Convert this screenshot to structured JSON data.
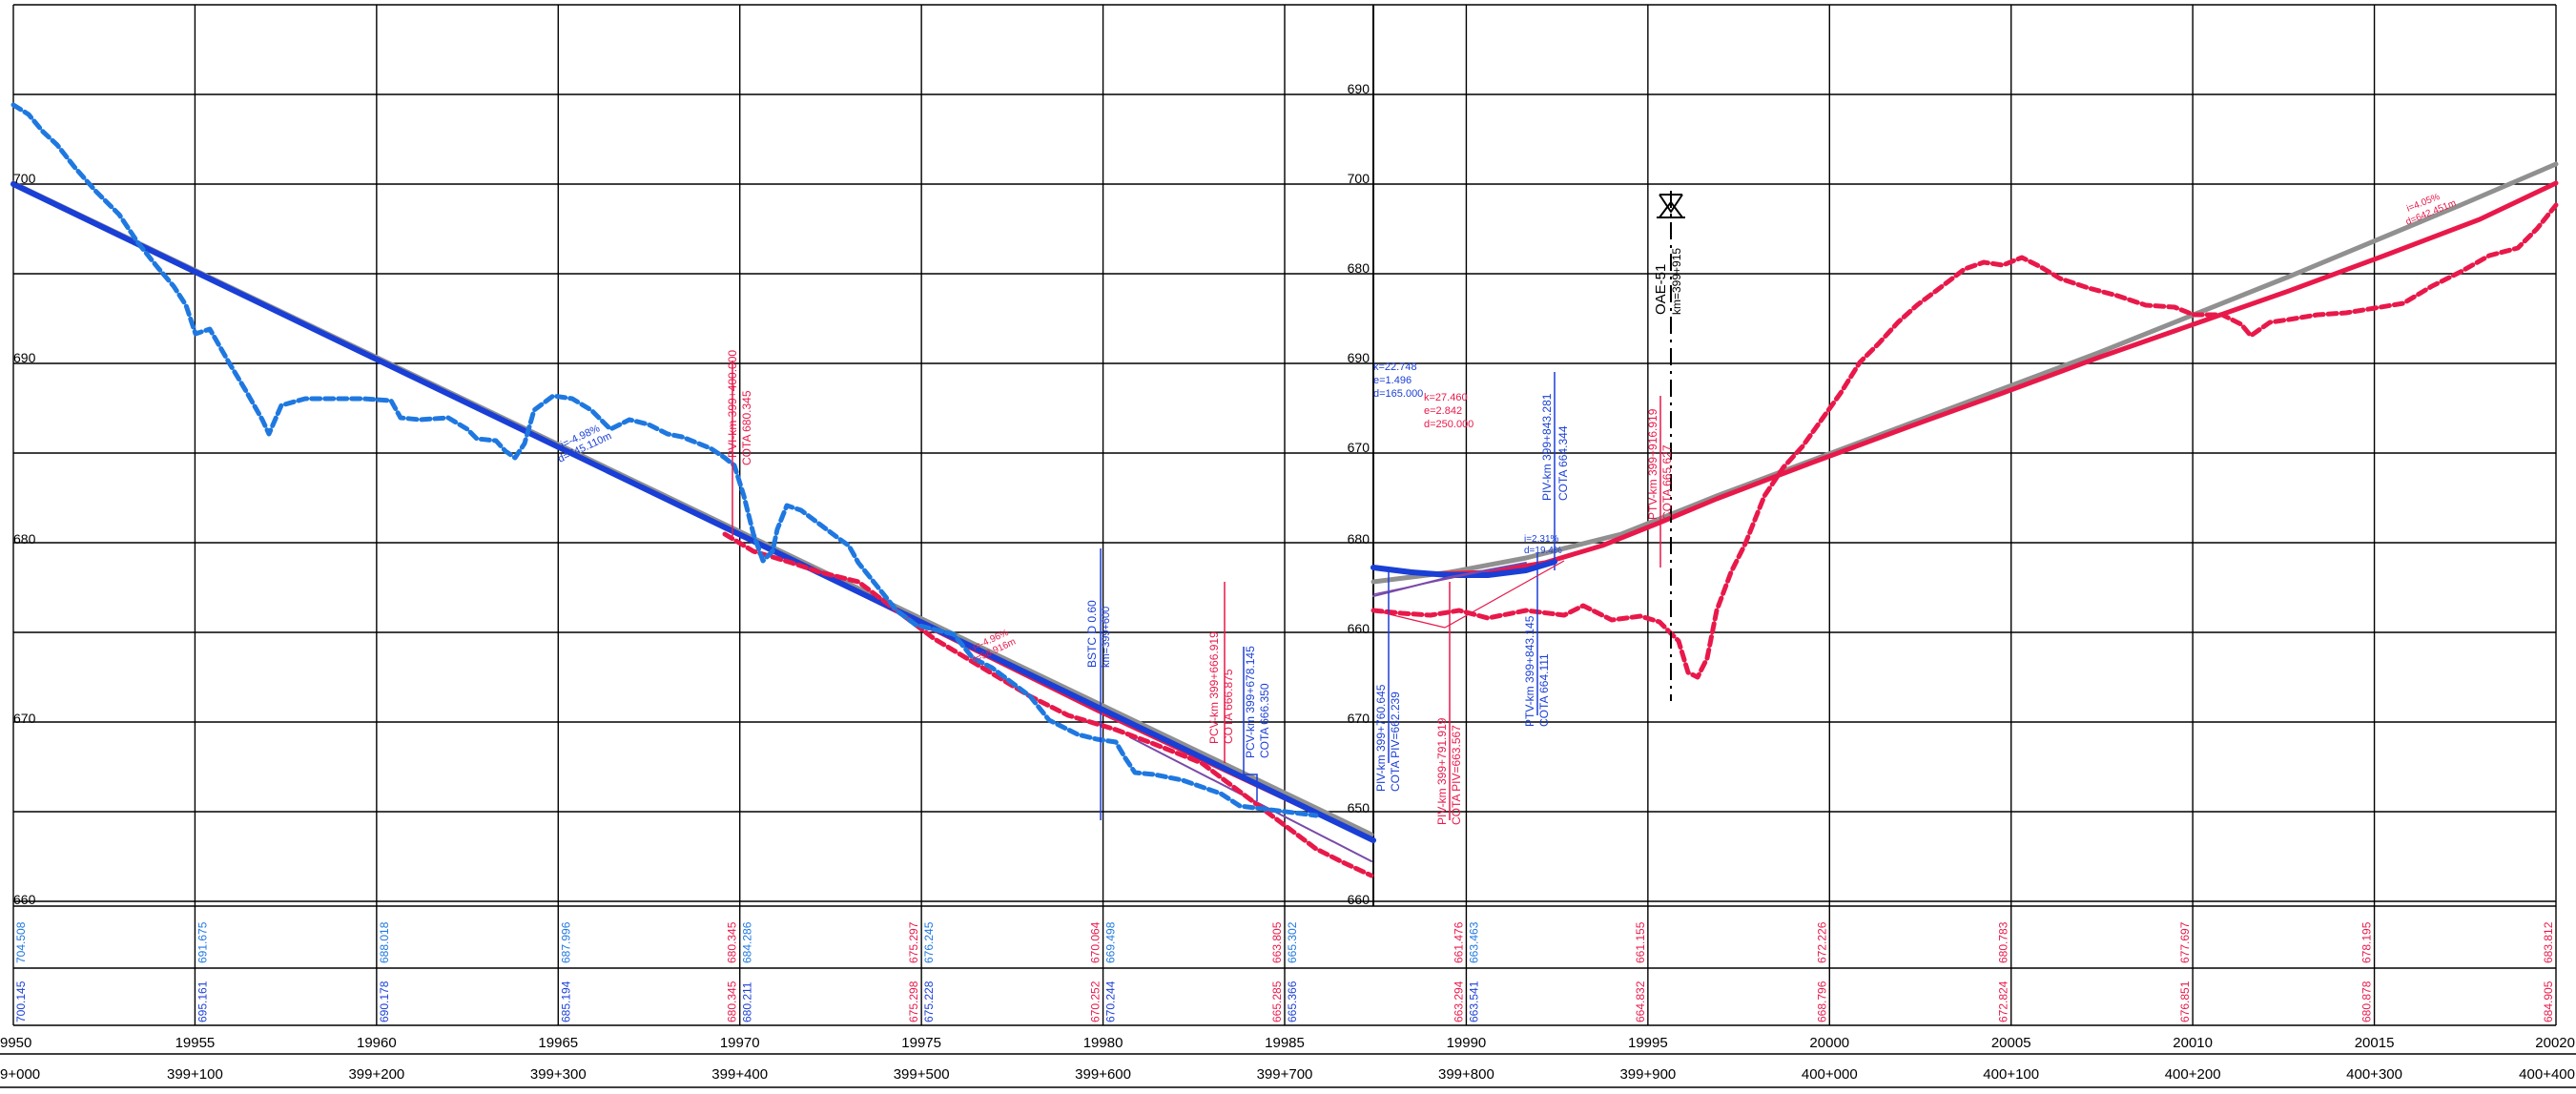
{
  "colors": {
    "grid": "#000000",
    "blue_terrain": "#1f78e0",
    "red_terrain": "#e8194a",
    "blue_design": "#1a3fd6",
    "red_design": "#e8194a",
    "grey_design": "#909090",
    "purple": "#7a4aa8",
    "black": "#000000"
  },
  "panel_left": {
    "elev_labels": [
      "700",
      "690",
      "680",
      "670",
      "660"
    ]
  },
  "panel_right": {
    "elev_labels": [
      "690",
      "700",
      "680",
      "690",
      "670",
      "680",
      "660",
      "670",
      "650",
      "660"
    ]
  },
  "bands": {
    "row1": [
      {
        "blue": "704.508"
      },
      {
        "blue": "691.675"
      },
      {
        "blue": "688.018"
      },
      {
        "blue": "687.996"
      },
      {
        "red": "680.345",
        "blue": "684.286"
      },
      {
        "red": "675.297",
        "blue": "676.245"
      },
      {
        "red": "670.064",
        "blue": "669.498"
      },
      {
        "red": "663.805",
        "blue": "665.302"
      },
      {
        "red": "661.476",
        "blue": "663.463"
      },
      {
        "red": "661.155"
      },
      {
        "red": "672.226"
      },
      {
        "red": "680.783"
      },
      {
        "red": "677.697"
      },
      {
        "red": "678.195"
      },
      {
        "red": "683.812"
      }
    ],
    "row2": [
      {
        "blue": "700.145"
      },
      {
        "blue": "695.161"
      },
      {
        "blue": "690.178"
      },
      {
        "blue": "685.194"
      },
      {
        "red": "680.345",
        "blue": "680.211"
      },
      {
        "red": "675.298",
        "blue": "675.228"
      },
      {
        "red": "670.252",
        "blue": "670.244"
      },
      {
        "red": "665.285",
        "blue": "665.366"
      },
      {
        "red": "663.294",
        "blue": "663.541"
      },
      {
        "red": "664.832"
      },
      {
        "red": "668.796"
      },
      {
        "red": "672.824"
      },
      {
        "red": "676.851"
      },
      {
        "red": "680.878"
      },
      {
        "red": "684.905"
      }
    ],
    "row3": [
      "9950",
      "19955",
      "19960",
      "19965",
      "19970",
      "19975",
      "19980",
      "19985",
      "19990",
      "19995",
      "20000",
      "20005",
      "20010",
      "20015",
      "20020"
    ],
    "row4": [
      "9+000",
      "399+100",
      "399+200",
      "399+300",
      "399+400",
      "399+500",
      "399+600",
      "399+700",
      "399+800",
      "399+900",
      "400+000",
      "400+100",
      "400+200",
      "400+300",
      "400+400"
    ]
  },
  "annotations": {
    "pvi1_km": "PVI-km 399+400.000",
    "pvi1_cota": "COTA 680.345",
    "grade1_i": "i=-4.98%",
    "grade1_d": "d=745.110m",
    "grade2_i": "i=-4.96%",
    "grade2_d": "d=58.916m",
    "bstc1": "BSTC D 0.60",
    "bstc2": "km=399+600",
    "pcv_red_km": "PCV-km 399+666.919",
    "pcv_red_cota": "COTA 666.875",
    "pcv_blue_km": "PCV-km 399+678.145",
    "pcv_blue_cota": "COTA 666.350",
    "curve_blue_k": "k=22.748",
    "curve_blue_e": "e=1.496",
    "curve_blue_d": "d=165.000",
    "curve_red_k": "k=27.460",
    "curve_red_e": "e=2.842",
    "curve_red_d": "d=250.000",
    "piv_blue_km": "PIV-km 399+760.645",
    "piv_blue_cota": "COTA PIV=662.239",
    "piv_red_km": "PIV-km 399+791.919",
    "piv_red_cota": "COTA PIV=663.567",
    "ptv_blue_km": "PTV-km 399+843.145",
    "ptv_blue_cota": "COTA 664.111",
    "piv2_blue_km": "PIV-km 399+843.281",
    "piv2_blue_cota": "COTA 664.344",
    "ptv_red_km": "PTV-km 399+916.919",
    "ptv_red_cota": "COTA 665.627",
    "small_i": "i=2.31%",
    "small_d": "d=19.4%",
    "oae_name": "OAE-51",
    "oae_km": "km=399+915",
    "grade3_i": "i=4.05%",
    "grade3_d": "d=642.451m"
  }
}
